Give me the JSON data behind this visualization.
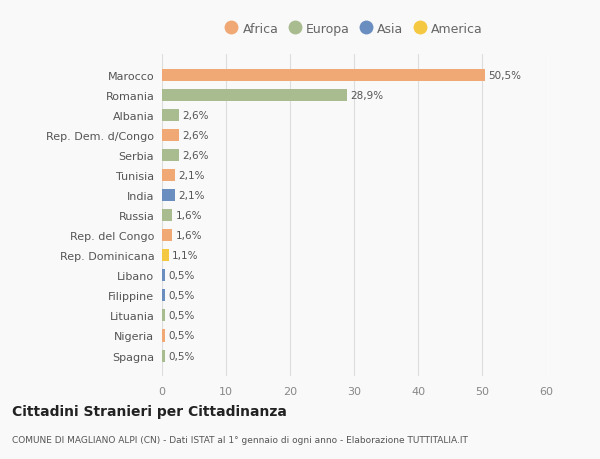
{
  "title": "Cittadini Stranieri per Cittadinanza",
  "subtitle": "COMUNE DI MAGLIANO ALPI (CN) - Dati ISTAT al 1° gennaio di ogni anno - Elaborazione TUTTITALIA.IT",
  "countries": [
    "Marocco",
    "Romania",
    "Albania",
    "Rep. Dem. d/Congo",
    "Serbia",
    "Tunisia",
    "India",
    "Russia",
    "Rep. del Congo",
    "Rep. Dominicana",
    "Libano",
    "Filippine",
    "Lituania",
    "Nigeria",
    "Spagna"
  ],
  "values": [
    50.5,
    28.9,
    2.6,
    2.6,
    2.6,
    2.1,
    2.1,
    1.6,
    1.6,
    1.1,
    0.5,
    0.5,
    0.5,
    0.5,
    0.5
  ],
  "labels": [
    "50,5%",
    "28,9%",
    "2,6%",
    "2,6%",
    "2,6%",
    "2,1%",
    "2,1%",
    "1,6%",
    "1,6%",
    "1,1%",
    "0,5%",
    "0,5%",
    "0,5%",
    "0,5%",
    "0,5%"
  ],
  "colors": [
    "#F0A875",
    "#A8BC8F",
    "#A8BC8F",
    "#F0A875",
    "#A8BC8F",
    "#F0A875",
    "#6A8EBF",
    "#A8BC8F",
    "#F0A875",
    "#F5C842",
    "#6A8EBF",
    "#6A8EBF",
    "#A8BC8F",
    "#F0A875",
    "#A8BC8F"
  ],
  "legend": [
    {
      "label": "Africa",
      "color": "#F0A875"
    },
    {
      "label": "Europa",
      "color": "#A8BC8F"
    },
    {
      "label": "Asia",
      "color": "#6A8EBF"
    },
    {
      "label": "America",
      "color": "#F5C842"
    }
  ],
  "xlim": [
    0,
    60
  ],
  "xticks": [
    0,
    10,
    20,
    30,
    40,
    50,
    60
  ],
  "background_color": "#f9f9f9",
  "grid_color": "#dddddd"
}
